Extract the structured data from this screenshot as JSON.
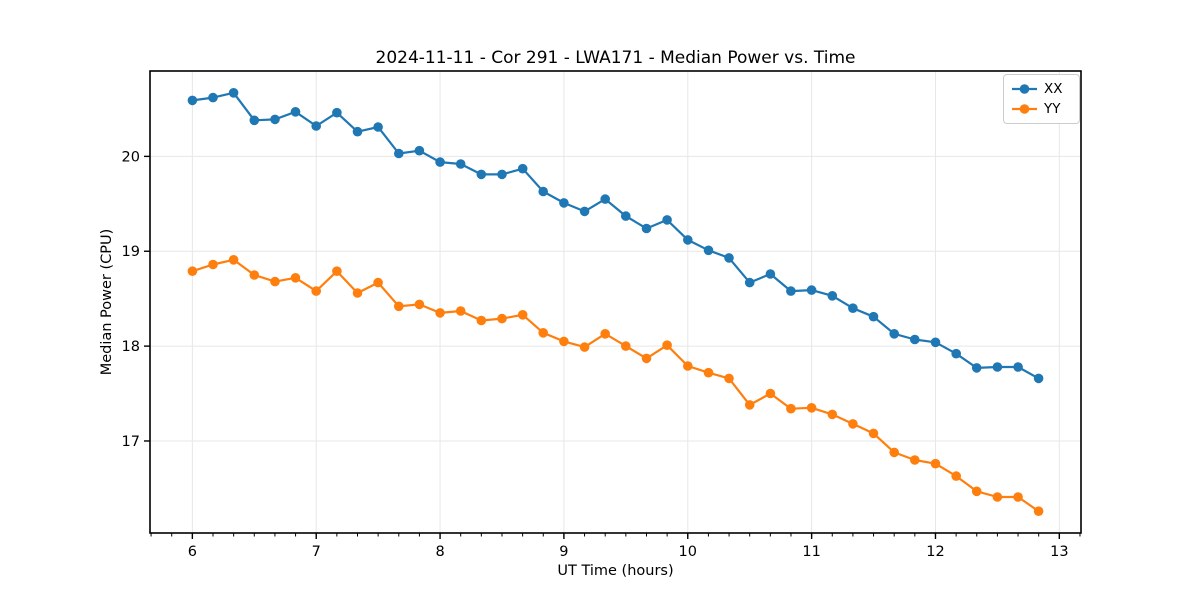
{
  "figure": {
    "background": "#ffffff",
    "spine_color": "#000000",
    "grid_color": "#e7e7e7"
  },
  "chart_data": {
    "type": "line",
    "title": "2024-11-11 - Cor 291 - LWA171 - Median Power vs. Time",
    "xlabel": "UT Time (hours)",
    "ylabel": "Median Power (CPU)",
    "xlim": [
      5.658,
      13.175
    ],
    "ylim": [
      16.03,
      20.9
    ],
    "xticks": [
      6,
      7,
      8,
      9,
      10,
      11,
      12,
      13
    ],
    "yticks": [
      17,
      18,
      19,
      20
    ],
    "x_minor_step": 0.166667,
    "grid": true,
    "legend_position": "upper right",
    "marker": "o",
    "x": [
      6.0,
      6.167,
      6.333,
      6.5,
      6.667,
      6.833,
      7.0,
      7.167,
      7.333,
      7.5,
      7.667,
      7.833,
      8.0,
      8.167,
      8.333,
      8.5,
      8.667,
      8.833,
      9.0,
      9.167,
      9.333,
      9.5,
      9.667,
      9.833,
      10.0,
      10.167,
      10.333,
      10.5,
      10.667,
      10.833,
      11.0,
      11.167,
      11.333,
      11.5,
      11.667,
      11.833,
      12.0,
      12.167,
      12.333,
      12.5,
      12.667,
      12.833
    ],
    "series": [
      {
        "name": "XX",
        "color": "#1f77b4",
        "values": [
          20.59,
          20.62,
          20.67,
          20.38,
          20.39,
          20.47,
          20.32,
          20.46,
          20.26,
          20.31,
          20.03,
          20.06,
          19.94,
          19.92,
          19.81,
          19.81,
          19.87,
          19.63,
          19.51,
          19.42,
          19.55,
          19.37,
          19.24,
          19.33,
          19.12,
          19.01,
          18.93,
          18.67,
          18.76,
          18.58,
          18.59,
          18.53,
          18.4,
          18.31,
          18.13,
          18.07,
          18.04,
          17.92,
          17.77,
          17.78,
          17.78,
          17.66
        ]
      },
      {
        "name": "YY",
        "color": "#ff7f0e",
        "values": [
          18.79,
          18.86,
          18.91,
          18.75,
          18.68,
          18.72,
          18.58,
          18.79,
          18.56,
          18.67,
          18.42,
          18.44,
          18.35,
          18.37,
          18.27,
          18.29,
          18.33,
          18.14,
          18.05,
          17.99,
          18.13,
          18.0,
          17.87,
          18.01,
          17.79,
          17.72,
          17.66,
          17.38,
          17.5,
          17.34,
          17.35,
          17.28,
          17.18,
          17.08,
          16.88,
          16.8,
          16.76,
          16.63,
          16.47,
          16.41,
          16.41,
          16.26
        ]
      }
    ]
  }
}
